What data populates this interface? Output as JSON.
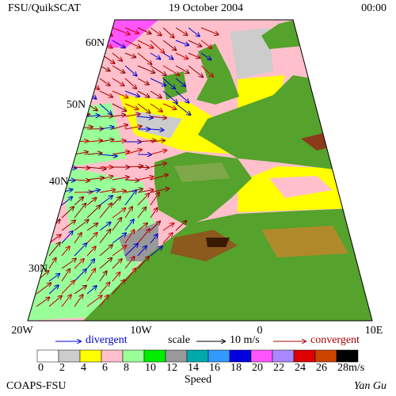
{
  "header": {
    "left": "FSU/QuikSCAT",
    "date": "19 October 2004",
    "time": "00:00"
  },
  "map": {
    "lat_labels": [
      "60N",
      "50N",
      "40N",
      "30N"
    ],
    "lon_labels": [
      "20W",
      "10W",
      "0",
      "10E"
    ]
  },
  "legend": {
    "divergent": "divergent",
    "scale": "scale",
    "scale_value": "10 m/s",
    "convergent": "convergent",
    "speed_bins": [
      {
        "label": "0",
        "color": "#ffffff"
      },
      {
        "label": "2",
        "color": "#cccccc"
      },
      {
        "label": "4",
        "color": "#ffff00"
      },
      {
        "label": "6",
        "color": "#ffc0cb"
      },
      {
        "label": "8",
        "color": "#99ff99"
      },
      {
        "label": "10",
        "color": "#00ee00"
      },
      {
        "label": "12",
        "color": "#999999"
      },
      {
        "label": "14",
        "color": "#00aaaa"
      },
      {
        "label": "16",
        "color": "#3399ff"
      },
      {
        "label": "18",
        "color": "#0000dd"
      },
      {
        "label": "20",
        "color": "#ff55ff"
      },
      {
        "label": "22",
        "color": "#aa88ff"
      },
      {
        "label": "24",
        "color": "#dd0000"
      },
      {
        "label": "26",
        "color": "#cc4400"
      },
      {
        "label": "28",
        "color": "#000000"
      }
    ],
    "unit": "m/s",
    "title": "Speed"
  },
  "footer": {
    "left": "COAPS-FSU",
    "right": "Yan Gu"
  }
}
